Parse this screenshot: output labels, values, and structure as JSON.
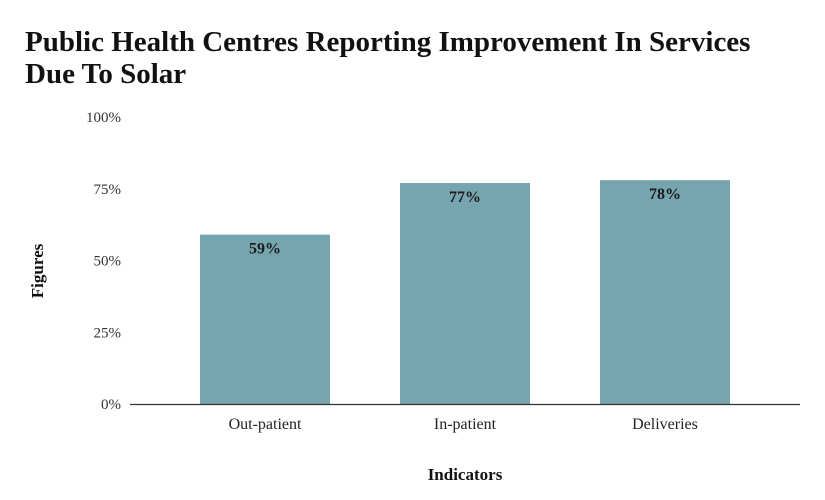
{
  "chart_data": {
    "type": "bar",
    "title": "Public Health Centres Reporting Improvement In Services Due To Solar",
    "xlabel": "Indicators",
    "ylabel": "Figures",
    "categories": [
      "Out-patient",
      "In-patient",
      "Deliveries"
    ],
    "values": [
      59,
      77,
      78
    ],
    "data_labels": [
      "59%",
      "77%",
      "78%"
    ],
    "ylim": [
      0,
      100
    ],
    "yticks": [
      0,
      25,
      50,
      75,
      100
    ],
    "ytick_labels": [
      "0%",
      "25%",
      "50%",
      "75%",
      "100%"
    ],
    "grid": false,
    "legend": "none",
    "bar_color": "#76a5af"
  }
}
